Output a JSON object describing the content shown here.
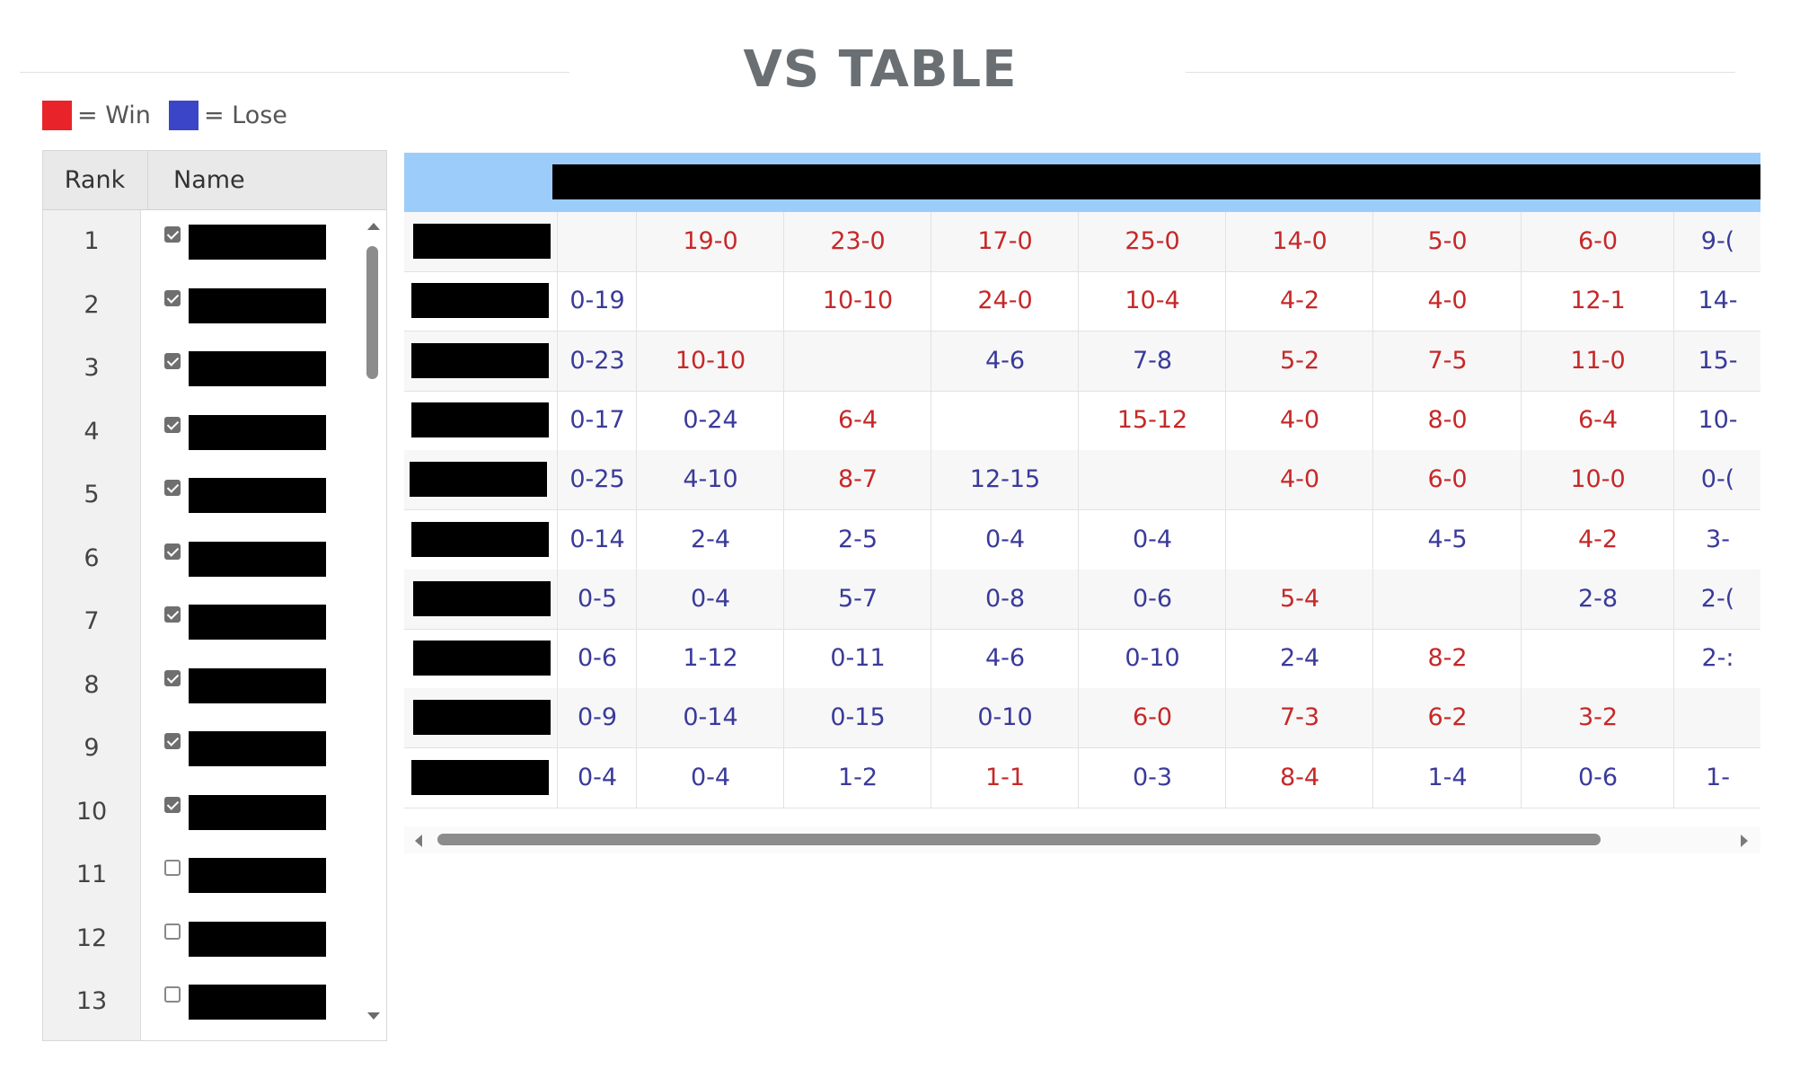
{
  "title": "VS TABLE",
  "legend": {
    "win_label": "= Win",
    "lose_label": "= Lose",
    "win_color": "#e8242a",
    "lose_color": "#3b45c8"
  },
  "left": {
    "headers": {
      "rank": "Rank",
      "name": "Name"
    },
    "rows": [
      {
        "rank": "1",
        "checked": true
      },
      {
        "rank": "2",
        "checked": true
      },
      {
        "rank": "3",
        "checked": true
      },
      {
        "rank": "4",
        "checked": true
      },
      {
        "rank": "5",
        "checked": true
      },
      {
        "rank": "6",
        "checked": true
      },
      {
        "rank": "7",
        "checked": true
      },
      {
        "rank": "8",
        "checked": true
      },
      {
        "rank": "9",
        "checked": true
      },
      {
        "rank": "10",
        "checked": true
      },
      {
        "rank": "11",
        "checked": false
      },
      {
        "rank": "12",
        "checked": false
      },
      {
        "rank": "13",
        "checked": false
      }
    ]
  },
  "vs_table": {
    "rows": [
      [
        "",
        "19-0",
        "23-0",
        "17-0",
        "25-0",
        "14-0",
        "5-0",
        "6-0",
        "9-("
      ],
      [
        "0-19",
        "",
        "10-10",
        "24-0",
        "10-4",
        "4-2",
        "4-0",
        "12-1",
        "14-"
      ],
      [
        "0-23",
        "10-10",
        "",
        "4-6",
        "7-8",
        "5-2",
        "7-5",
        "11-0",
        "15-"
      ],
      [
        "0-17",
        "0-24",
        "6-4",
        "",
        "15-12",
        "4-0",
        "8-0",
        "6-4",
        "10-"
      ],
      [
        "0-25",
        "4-10",
        "8-7",
        "12-15",
        "",
        "4-0",
        "6-0",
        "10-0",
        "0-("
      ],
      [
        "0-14",
        "2-4",
        "2-5",
        "0-4",
        "0-4",
        "",
        "4-5",
        "4-2",
        "3-"
      ],
      [
        "0-5",
        "0-4",
        "5-7",
        "0-8",
        "0-6",
        "5-4",
        "",
        "2-8",
        "2-("
      ],
      [
        "0-6",
        "1-12",
        "0-11",
        "4-6",
        "0-10",
        "2-4",
        "8-2",
        "",
        "2-:"
      ],
      [
        "0-9",
        "0-14",
        "0-15",
        "0-10",
        "6-0",
        "7-3",
        "6-2",
        "3-2",
        ""
      ],
      [
        "0-4",
        "0-4",
        "1-2",
        "1-1",
        "0-3",
        "8-4",
        "1-4",
        "0-6",
        "1-"
      ]
    ]
  }
}
